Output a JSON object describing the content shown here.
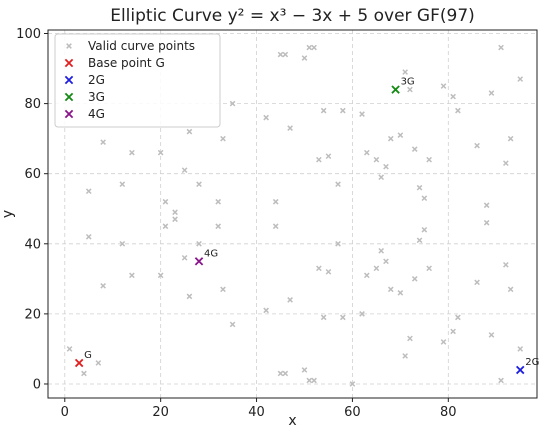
{
  "chart_data": {
    "type": "scatter",
    "title": "Elliptic Curve y² = x³ − 3x + 5 over GF(97)",
    "xlabel": "x",
    "ylabel": "y",
    "xlim": [
      -3.5,
      98.5
    ],
    "ylim": [
      -4,
      101
    ],
    "xticks": [
      0,
      20,
      40,
      60,
      80
    ],
    "yticks": [
      0,
      20,
      40,
      60,
      80,
      100
    ],
    "grid": true,
    "legend_position": "top-left",
    "series": [
      {
        "name": "Valid curve points",
        "color": "#bdbdbd",
        "marker": "x",
        "points": [
          [
            1,
            10
          ],
          [
            4,
            3
          ],
          [
            5,
            55
          ],
          [
            5,
            42
          ],
          [
            7,
            6
          ],
          [
            8,
            69
          ],
          [
            8,
            28
          ],
          [
            12,
            57
          ],
          [
            12,
            40
          ],
          [
            14,
            66
          ],
          [
            14,
            31
          ],
          [
            20,
            66
          ],
          [
            20,
            31
          ],
          [
            21,
            52
          ],
          [
            21,
            45
          ],
          [
            23,
            49
          ],
          [
            23,
            47
          ],
          [
            25,
            61
          ],
          [
            25,
            36
          ],
          [
            26,
            72
          ],
          [
            26,
            25
          ],
          [
            28,
            57
          ],
          [
            28,
            40
          ],
          [
            32,
            52
          ],
          [
            32,
            45
          ],
          [
            33,
            70
          ],
          [
            33,
            27
          ],
          [
            35,
            80
          ],
          [
            35,
            17
          ],
          [
            42,
            76
          ],
          [
            42,
            21
          ],
          [
            44,
            52
          ],
          [
            44,
            45
          ],
          [
            45,
            94
          ],
          [
            45,
            3
          ],
          [
            46,
            94
          ],
          [
            46,
            3
          ],
          [
            47,
            73
          ],
          [
            47,
            24
          ],
          [
            50,
            93
          ],
          [
            50,
            4
          ],
          [
            51,
            96
          ],
          [
            51,
            1
          ],
          [
            52,
            96
          ],
          [
            52,
            1
          ],
          [
            53,
            64
          ],
          [
            53,
            33
          ],
          [
            54,
            78
          ],
          [
            54,
            19
          ],
          [
            55,
            65
          ],
          [
            55,
            32
          ],
          [
            57,
            57
          ],
          [
            57,
            40
          ],
          [
            58,
            78
          ],
          [
            58,
            19
          ],
          [
            60,
            0
          ],
          [
            62,
            77
          ],
          [
            62,
            20
          ],
          [
            63,
            66
          ],
          [
            63,
            31
          ],
          [
            65,
            64
          ],
          [
            65,
            33
          ],
          [
            66,
            59
          ],
          [
            66,
            38
          ],
          [
            67,
            62
          ],
          [
            67,
            35
          ],
          [
            68,
            70
          ],
          [
            68,
            27
          ],
          [
            70,
            71
          ],
          [
            70,
            26
          ],
          [
            71,
            89
          ],
          [
            71,
            8
          ],
          [
            72,
            84
          ],
          [
            72,
            13
          ],
          [
            73,
            67
          ],
          [
            73,
            30
          ],
          [
            74,
            56
          ],
          [
            74,
            41
          ],
          [
            75,
            53
          ],
          [
            75,
            44
          ],
          [
            76,
            64
          ],
          [
            76,
            33
          ],
          [
            79,
            85
          ],
          [
            79,
            12
          ],
          [
            81,
            82
          ],
          [
            81,
            15
          ],
          [
            82,
            78
          ],
          [
            82,
            19
          ],
          [
            86,
            68
          ],
          [
            86,
            29
          ],
          [
            88,
            51
          ],
          [
            88,
            46
          ],
          [
            89,
            83
          ],
          [
            89,
            14
          ],
          [
            91,
            96
          ],
          [
            91,
            1
          ],
          [
            92,
            63
          ],
          [
            92,
            34
          ],
          [
            93,
            70
          ],
          [
            93,
            27
          ],
          [
            95,
            87
          ],
          [
            95,
            10
          ]
        ]
      },
      {
        "name": "Base point G",
        "color": "#e02020",
        "marker": "x",
        "label": "G",
        "points": [
          [
            3,
            6
          ]
        ]
      },
      {
        "name": "2G",
        "color": "#1f1fe0",
        "marker": "x",
        "label": "2G",
        "points": [
          [
            95,
            4
          ]
        ]
      },
      {
        "name": "3G",
        "color": "#158a15",
        "marker": "x",
        "label": "3G",
        "points": [
          [
            69,
            84
          ]
        ]
      },
      {
        "name": "4G",
        "color": "#8a148a",
        "marker": "x",
        "label": "4G",
        "points": [
          [
            28,
            35
          ]
        ]
      }
    ]
  }
}
